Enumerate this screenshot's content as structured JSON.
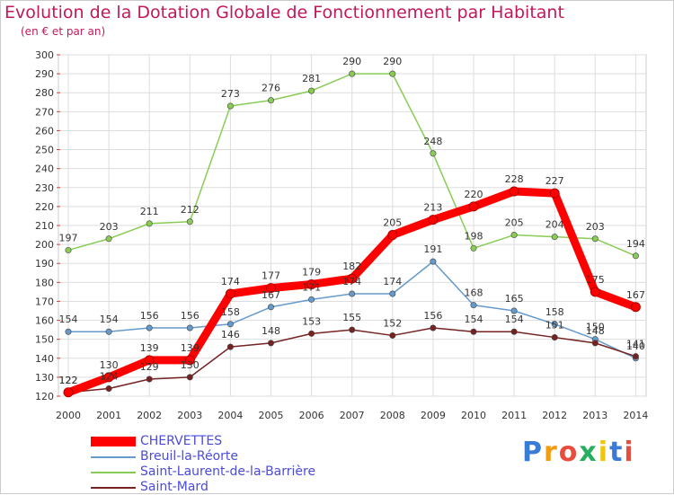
{
  "chart_data": {
    "type": "line",
    "title": "Evolution de la Dotation Globale de Fonctionnement par Habitant",
    "subtitle": "(en € et par an)",
    "x": [
      "2000",
      "2001",
      "2002",
      "2003",
      "2004",
      "2005",
      "2006",
      "2007",
      "2008",
      "2009",
      "2010",
      "2011",
      "2012",
      "2013",
      "2014"
    ],
    "y_ticks": [
      "120",
      "130",
      "140",
      "150",
      "160",
      "170",
      "180",
      "190",
      "200",
      "210",
      "220",
      "230",
      "240",
      "250",
      "260",
      "270",
      "280",
      "290",
      "300"
    ],
    "ylim": [
      120,
      300
    ],
    "grid": true,
    "legend_position": "bottom-left",
    "series": [
      {
        "name": "CHERVETTES",
        "color": "#ff0000",
        "values": [
          122,
          130,
          139,
          139,
          174,
          177,
          179,
          182,
          205,
          213,
          220,
          228,
          227,
          175,
          167
        ],
        "labels": [
          "122",
          "130",
          "139",
          "139",
          "174",
          "177",
          "179",
          "182",
          "205",
          "213",
          "220",
          "228",
          "227",
          "175",
          "167"
        ]
      },
      {
        "name": "Breuil-la-Réorte",
        "color": "#6699cc",
        "values": [
          154,
          154,
          156,
          156,
          158,
          167,
          171,
          174,
          174,
          191,
          168,
          165,
          158,
          150,
          140
        ],
        "labels": [
          "154",
          "154",
          "156",
          "156",
          "158",
          "167",
          "171",
          "174",
          "174",
          "191",
          "168",
          "165",
          "158",
          "150",
          "140"
        ]
      },
      {
        "name": "Saint-Laurent-de-la-Barrière",
        "color": "#88cc55",
        "values": [
          197,
          203,
          211,
          212,
          273,
          276,
          281,
          290,
          290,
          248,
          198,
          205,
          204,
          203,
          194
        ],
        "labels": [
          "197",
          "203",
          "211",
          "212",
          "273",
          "276",
          "281",
          "290",
          "290",
          "248",
          "198",
          "205",
          "204",
          "203",
          "194"
        ]
      },
      {
        "name": "Saint-Mard",
        "color": "#772222",
        "values": [
          122,
          124,
          129,
          130,
          146,
          148,
          153,
          155,
          152,
          156,
          154,
          154,
          151,
          148,
          141
        ],
        "labels": [
          "122",
          "124",
          "129",
          "130",
          "146",
          "148",
          "153",
          "155",
          "152",
          "156",
          "154",
          "154",
          "151",
          "148",
          "141"
        ]
      }
    ]
  },
  "brand": {
    "letters": [
      "P",
      "r",
      "o",
      "x",
      "i",
      "t",
      "i"
    ]
  },
  "colors": {
    "title": "#c2185b",
    "legend_text": "#4b4bdc",
    "grid": "#dddddd"
  }
}
